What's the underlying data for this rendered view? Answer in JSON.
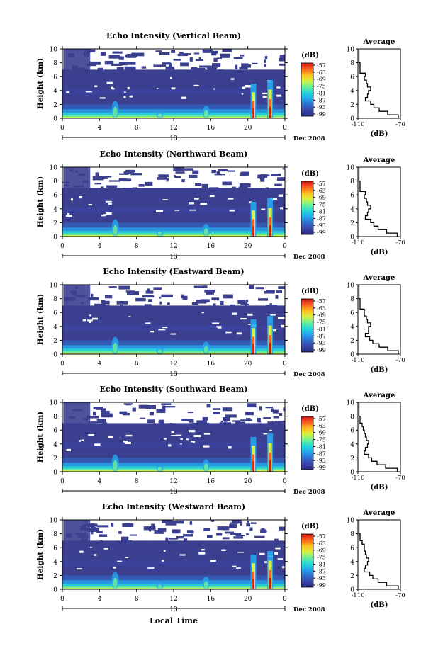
{
  "common": {
    "ylabel": "Height (km)",
    "y_ticks": [
      "0",
      "2",
      "4",
      "6",
      "8",
      "10"
    ],
    "x_ticks": [
      "0",
      "4",
      "8",
      "12",
      "16",
      "20",
      "0"
    ],
    "day_label": "13",
    "month_label": "Dec 2008",
    "colorbar_unit": "(dB)",
    "colorbar_ticks": [
      "-57",
      "-63",
      "-69",
      "-75",
      "-81",
      "-87",
      "-93",
      "-99"
    ],
    "avg_title": "Average",
    "avg_xticks": [
      "-110",
      "-70"
    ],
    "avg_xlabel": "(dB)",
    "xlabel": "Local Time"
  },
  "colors": {
    "background": "#3b3f8f",
    "colormap": [
      "#2a2c82",
      "#3a45a8",
      "#2f6fd0",
      "#25a8ef",
      "#27d8d8",
      "#6ef09a",
      "#d8f040",
      "#ffc020",
      "#ff6020",
      "#c81818"
    ]
  },
  "panels": [
    {
      "title": "Echo Intensity (Vertical Beam)"
    },
    {
      "title": "Echo Intensity (Northward Beam)"
    },
    {
      "title": "Echo Intensity (Eastward Beam)"
    },
    {
      "title": "Echo Intensity (Southward Beam)"
    },
    {
      "title": "Echo Intensity (Westward Beam)"
    }
  ],
  "chart_data": [
    {
      "type": "heatmap",
      "title": "Echo Intensity (Vertical Beam)",
      "xlabel": "",
      "ylabel": "Height (km)",
      "xlim": [
        0,
        24
      ],
      "ylim": [
        0,
        10
      ],
      "colorbar": {
        "label": "(dB)",
        "range": [
          -99,
          -57
        ]
      },
      "average_profile": {
        "title": "Average",
        "xlabel": "(dB)",
        "xlim": [
          -110,
          -70
        ],
        "height_km": [
          0,
          0.5,
          1,
          1.5,
          2,
          2.5,
          3,
          3.5,
          4,
          4.5,
          5,
          5.5,
          6,
          6.5,
          7,
          8,
          9,
          10
        ],
        "db": [
          -72,
          -82,
          -90,
          -95,
          -98,
          -103,
          -101,
          -100,
          -98,
          -101,
          -102,
          -104,
          -103,
          -108,
          -108,
          -109,
          -109,
          -109
        ]
      }
    },
    {
      "type": "heatmap",
      "title": "Echo Intensity (Northward Beam)",
      "xlabel": "",
      "ylabel": "Height (km)",
      "xlim": [
        0,
        24
      ],
      "ylim": [
        0,
        10
      ],
      "colorbar": {
        "label": "(dB)",
        "range": [
          -99,
          -57
        ]
      },
      "average_profile": {
        "title": "Average",
        "xlabel": "(dB)",
        "xlim": [
          -110,
          -70
        ],
        "height_km": [
          0,
          0.5,
          1,
          1.5,
          2,
          2.5,
          3,
          3.5,
          4,
          4.5,
          5,
          5.5,
          6,
          6.5,
          7,
          8,
          9,
          10
        ],
        "db": [
          -73,
          -83,
          -91,
          -95,
          -98,
          -103,
          -101,
          -100,
          -98,
          -101,
          -102,
          -104,
          -103,
          -108,
          -108,
          -109,
          -109,
          -109
        ]
      }
    },
    {
      "type": "heatmap",
      "title": "Echo Intensity (Eastward Beam)",
      "xlabel": "",
      "ylabel": "Height (km)",
      "xlim": [
        0,
        24
      ],
      "ylim": [
        0,
        10
      ],
      "colorbar": {
        "label": "(dB)",
        "range": [
          -99,
          -57
        ]
      },
      "average_profile": {
        "title": "Average",
        "xlabel": "(dB)",
        "xlim": [
          -110,
          -70
        ],
        "height_km": [
          0,
          0.5,
          1,
          1.5,
          2,
          2.5,
          3,
          3.5,
          4,
          4.5,
          5,
          5.5,
          6,
          6.5,
          7,
          8,
          9,
          10
        ],
        "db": [
          -72,
          -82,
          -90,
          -96,
          -99,
          -103,
          -100,
          -100,
          -98,
          -101,
          -102,
          -104,
          -104,
          -108,
          -108,
          -109,
          -109,
          -109
        ]
      }
    },
    {
      "type": "heatmap",
      "title": "Echo Intensity (Southward Beam)",
      "xlabel": "",
      "ylabel": "Height (km)",
      "xlim": [
        0,
        24
      ],
      "ylim": [
        0,
        10
      ],
      "colorbar": {
        "label": "(dB)",
        "range": [
          -99,
          -57
        ]
      },
      "average_profile": {
        "title": "Average",
        "xlabel": "(dB)",
        "xlim": [
          -110,
          -70
        ],
        "height_km": [
          0,
          0.5,
          1,
          1.5,
          2,
          2.5,
          3,
          3.5,
          4,
          4.5,
          5,
          5.5,
          6,
          6.5,
          7,
          8,
          9,
          10
        ],
        "db": [
          -73,
          -84,
          -92,
          -97,
          -100,
          -104,
          -103,
          -101,
          -100,
          -102,
          -103,
          -104,
          -105,
          -106,
          -108,
          -109,
          -109,
          -109
        ]
      }
    },
    {
      "type": "heatmap",
      "title": "Echo Intensity (Westward Beam)",
      "xlabel": "Local Time",
      "ylabel": "Height (km)",
      "xlim": [
        0,
        24
      ],
      "ylim": [
        0,
        10
      ],
      "colorbar": {
        "label": "(dB)",
        "range": [
          -99,
          -57
        ]
      },
      "average_profile": {
        "title": "Average",
        "xlabel": "(dB)",
        "xlim": [
          -110,
          -70
        ],
        "height_km": [
          0,
          0.5,
          1,
          1.5,
          2,
          2.5,
          3,
          3.5,
          4,
          4.5,
          5,
          5.5,
          6,
          6.5,
          7,
          8,
          9,
          10
        ],
        "db": [
          -72,
          -83,
          -91,
          -96,
          -99,
          -104,
          -103,
          -101,
          -100,
          -102,
          -103,
          -104,
          -104,
          -106,
          -108,
          -109,
          -109,
          -109
        ]
      }
    }
  ]
}
